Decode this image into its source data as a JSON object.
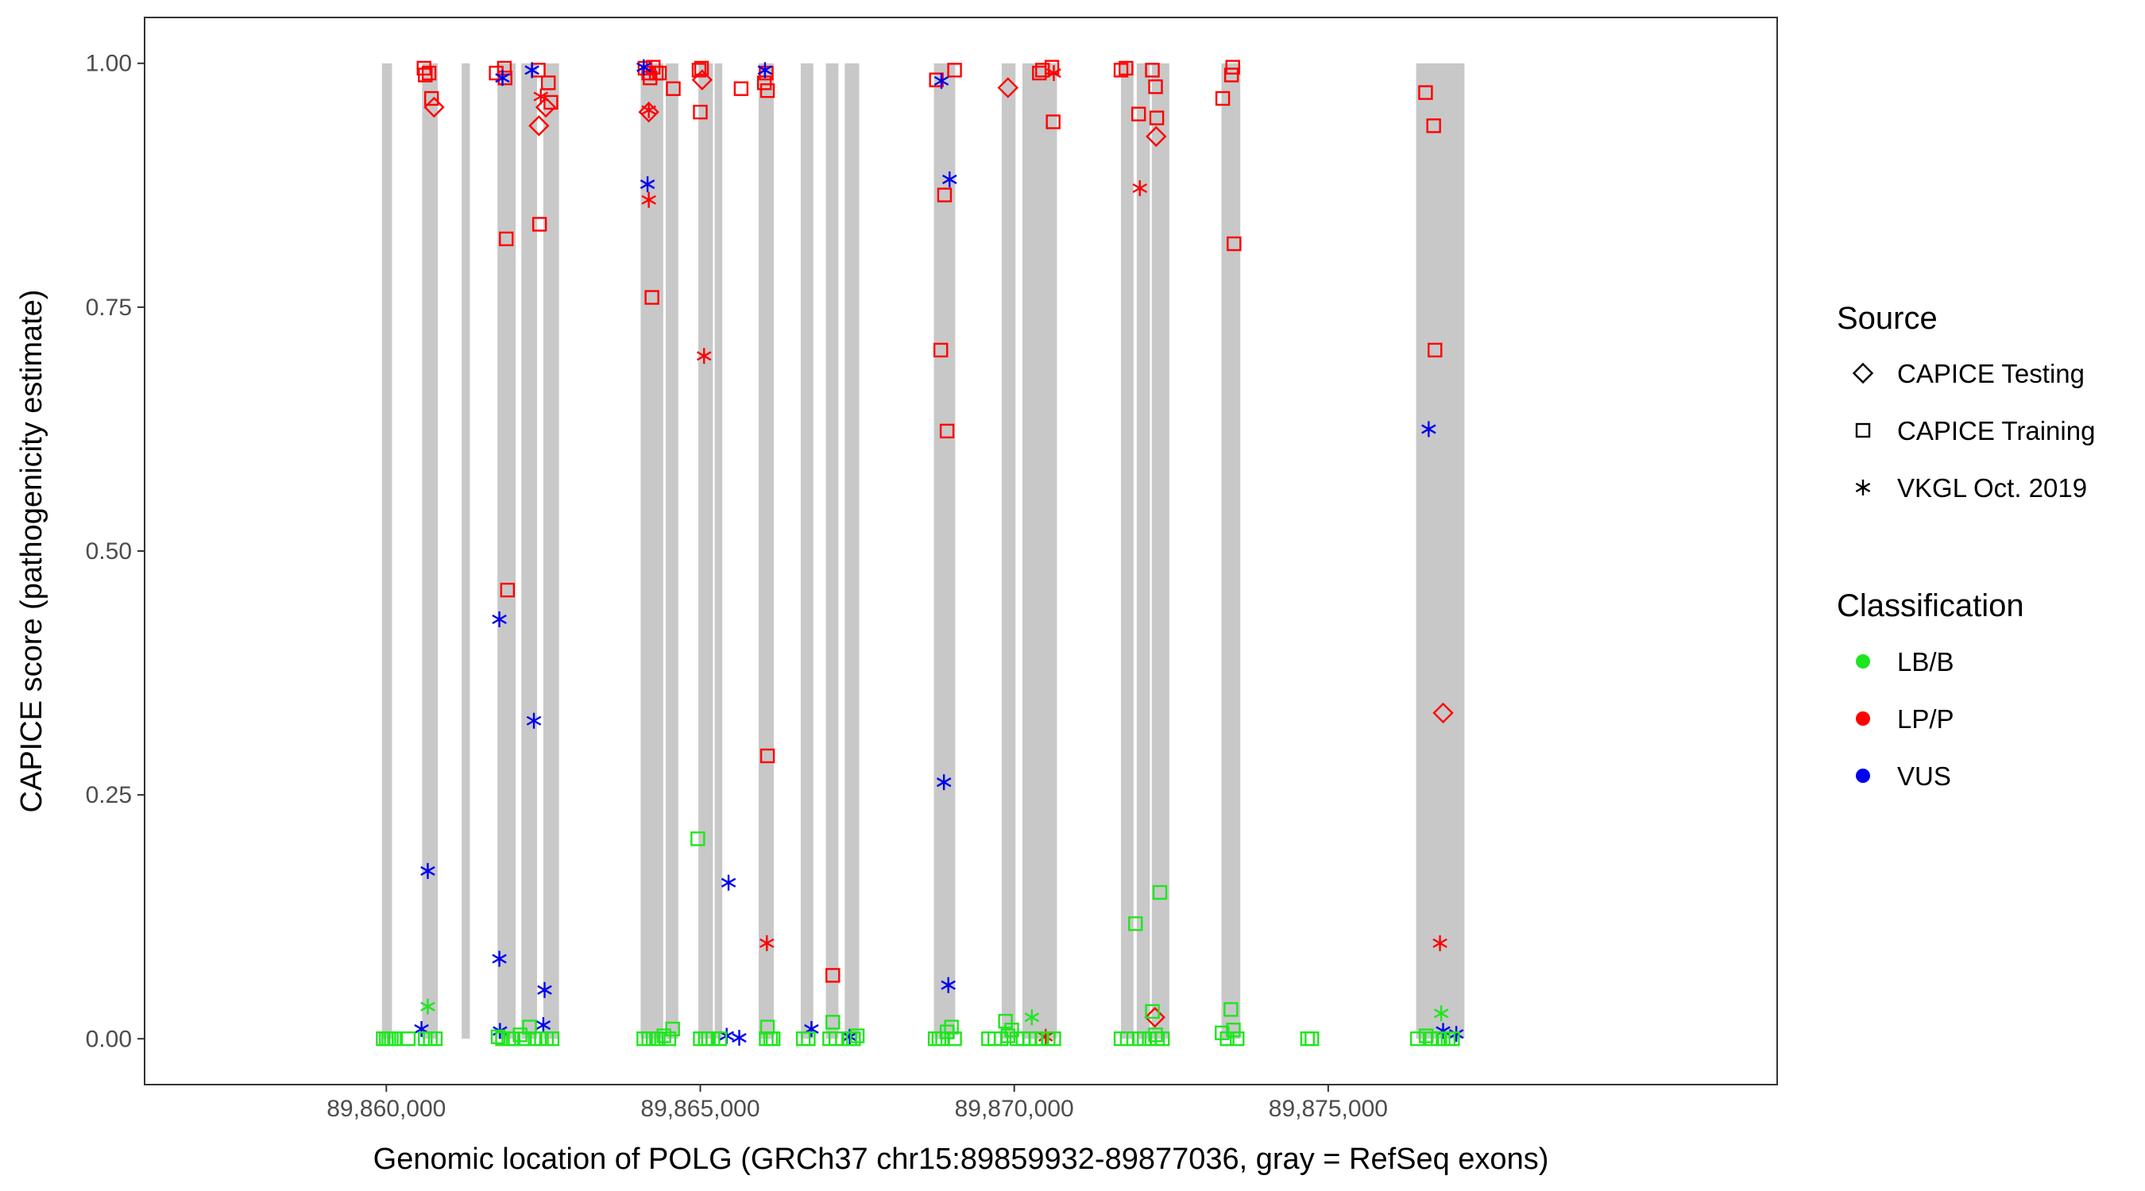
{
  "chart_data": {
    "type": "scatter",
    "xlabel": "Genomic location of POLG (GRCh37 chr15:89859932-89877036, gray = RefSeq exons)",
    "ylabel": "CAPICE score (pathogenicity estimate)",
    "xlim": [
      89856150,
      89882150
    ],
    "ylim": [
      -0.047,
      1.047
    ],
    "x_ticks": [
      89860000,
      89865000,
      89870000,
      89875000
    ],
    "x_tick_labels": [
      "89,860,000",
      "89,865,000",
      "89,870,000",
      "89,875,000"
    ],
    "y_ticks": [
      0.0,
      0.25,
      0.5,
      0.75,
      1.0
    ],
    "y_tick_labels": [
      "0.00",
      "0.25",
      "0.50",
      "0.75",
      "1.00"
    ],
    "grid": false,
    "exon_color": "#c8c8c8",
    "exons": [
      [
        89859930,
        89860090
      ],
      [
        89860570,
        89860820
      ],
      [
        89861200,
        89861330
      ],
      [
        89861770,
        89862060
      ],
      [
        89862150,
        89862400
      ],
      [
        89862500,
        89862750
      ],
      [
        89864050,
        89864410
      ],
      [
        89864450,
        89864650
      ],
      [
        89864970,
        89865200
      ],
      [
        89865230,
        89865350
      ],
      [
        89865930,
        89866170
      ],
      [
        89866600,
        89866800
      ],
      [
        89867000,
        89867200
      ],
      [
        89867300,
        89867530
      ],
      [
        89868720,
        89869060
      ],
      [
        89869800,
        89870020
      ],
      [
        89870130,
        89870680
      ],
      [
        89871700,
        89871900
      ],
      [
        89871950,
        89872160
      ],
      [
        89872190,
        89872470
      ],
      [
        89873300,
        89873600
      ],
      [
        89876400,
        89877170
      ]
    ],
    "legend": {
      "source_title": "Source",
      "source_items": [
        {
          "label": "CAPICE Testing",
          "shape": "diamond"
        },
        {
          "label": "CAPICE Training",
          "shape": "square"
        },
        {
          "label": "VKGL Oct. 2019",
          "shape": "asterisk"
        }
      ],
      "class_title": "Classification",
      "class_items": [
        {
          "label": "LB/B",
          "color": "#1ee61e"
        },
        {
          "label": "LP/P",
          "color": "#ff0000"
        },
        {
          "label": "VUS",
          "color": "#0000ee"
        }
      ]
    },
    "series": [
      {
        "source": "CAPICE Training",
        "classification": "LP/P",
        "points": [
          [
            89860600,
            0.995
          ],
          [
            89860620,
            0.988
          ],
          [
            89860680,
            0.99
          ],
          [
            89860720,
            0.964
          ],
          [
            89861750,
            0.99
          ],
          [
            89861880,
            0.995
          ],
          [
            89861890,
            0.985
          ],
          [
            89861910,
            0.82
          ],
          [
            89861930,
            0.46
          ],
          [
            89862420,
            0.993
          ],
          [
            89862440,
            0.835
          ],
          [
            89862580,
            0.98
          ],
          [
            89862620,
            0.96
          ],
          [
            89864120,
            0.995
          ],
          [
            89864180,
            0.99
          ],
          [
            89864200,
            0.985
          ],
          [
            89864250,
            0.996
          ],
          [
            89864230,
            0.76
          ],
          [
            89864300,
            0.99
          ],
          [
            89864350,
            0.99
          ],
          [
            89864570,
            0.974
          ],
          [
            89864980,
            0.993
          ],
          [
            89865020,
            0.995
          ],
          [
            89865000,
            0.95
          ],
          [
            89865650,
            0.974
          ],
          [
            89866020,
            0.98
          ],
          [
            89866050,
            0.99
          ],
          [
            89866070,
            0.972
          ],
          [
            89866070,
            0.29
          ],
          [
            89867110,
            0.065
          ],
          [
            89868760,
            0.983
          ],
          [
            89868830,
            0.706
          ],
          [
            89868890,
            0.865
          ],
          [
            89868930,
            0.623
          ],
          [
            89869050,
            0.993
          ],
          [
            89870400,
            0.99
          ],
          [
            89870450,
            0.993
          ],
          [
            89870600,
            0.996
          ],
          [
            89870620,
            0.94
          ],
          [
            89871700,
            0.993
          ],
          [
            89871780,
            0.995
          ],
          [
            89871980,
            0.948
          ],
          [
            89872200,
            0.993
          ],
          [
            89872250,
            0.976
          ],
          [
            89872270,
            0.944
          ],
          [
            89873320,
            0.964
          ],
          [
            89873460,
            0.988
          ],
          [
            89873480,
            0.996
          ],
          [
            89873500,
            0.815
          ],
          [
            89876550,
            0.97
          ],
          [
            89876680,
            0.936
          ],
          [
            89876700,
            0.706
          ]
        ]
      },
      {
        "source": "CAPICE Testing",
        "classification": "LP/P",
        "points": [
          [
            89860760,
            0.955
          ],
          [
            89862430,
            0.936
          ],
          [
            89862540,
            0.955
          ],
          [
            89864180,
            0.95
          ],
          [
            89865030,
            0.983
          ],
          [
            89869900,
            0.975
          ],
          [
            89872260,
            0.925
          ],
          [
            89872240,
            0.022
          ],
          [
            89876830,
            0.334
          ]
        ]
      },
      {
        "source": "VKGL Oct. 2019",
        "classification": "LP/P",
        "points": [
          [
            89862460,
            0.966
          ],
          [
            89864180,
            0.952
          ],
          [
            89864180,
            0.86
          ],
          [
            89865060,
            0.7
          ],
          [
            89866060,
            0.098
          ],
          [
            89870500,
            0.002
          ],
          [
            89870630,
            0.99
          ],
          [
            89872000,
            0.872
          ],
          [
            89876780,
            0.098
          ]
        ]
      },
      {
        "source": "VKGL Oct. 2019",
        "classification": "VUS",
        "points": [
          [
            89860660,
            0.172
          ],
          [
            89860560,
            0.01
          ],
          [
            89861800,
            0.43
          ],
          [
            89861800,
            0.082
          ],
          [
            89861810,
            0.008
          ],
          [
            89861850,
            0.985
          ],
          [
            89862320,
            0.993
          ],
          [
            89862350,
            0.326
          ],
          [
            89862520,
            0.05
          ],
          [
            89862500,
            0.014
          ],
          [
            89864100,
            0.996
          ],
          [
            89864160,
            0.876
          ],
          [
            89865450,
            0.16
          ],
          [
            89865420,
            0.003
          ],
          [
            89865620,
            0.001
          ],
          [
            89866030,
            0.993
          ],
          [
            89866770,
            0.01
          ],
          [
            89867380,
            0.002
          ],
          [
            89868840,
            0.982
          ],
          [
            89868880,
            0.263
          ],
          [
            89868950,
            0.055
          ],
          [
            89868970,
            0.881
          ],
          [
            89876600,
            0.625
          ],
          [
            89876830,
            0.008
          ],
          [
            89877040,
            0.005
          ]
        ]
      },
      {
        "source": "VKGL Oct. 2019",
        "classification": "LB/B",
        "points": [
          [
            89860660,
            0.033
          ],
          [
            89876800,
            0.026
          ],
          [
            89870280,
            0.022
          ]
        ]
      },
      {
        "source": "CAPICE Training",
        "classification": "LB/B",
        "points": [
          [
            89859950,
            0.0
          ],
          [
            89860000,
            0.0
          ],
          [
            89860040,
            0.0
          ],
          [
            89860080,
            0.0
          ],
          [
            89860130,
            0.0
          ],
          [
            89860350,
            0.0
          ],
          [
            89860620,
            0.0
          ],
          [
            89860700,
            0.0
          ],
          [
            89860780,
            0.0
          ],
          [
            89861780,
            0.002
          ],
          [
            89861850,
            0.0
          ],
          [
            89861950,
            0.0
          ],
          [
            89862020,
            0.0
          ],
          [
            89862130,
            0.004
          ],
          [
            89862200,
            0.0
          ],
          [
            89862280,
            0.012
          ],
          [
            89862370,
            0.0
          ],
          [
            89862470,
            0.0
          ],
          [
            89862550,
            0.0
          ],
          [
            89862640,
            0.0
          ],
          [
            89864100,
            0.0
          ],
          [
            89864180,
            0.0
          ],
          [
            89864250,
            0.0
          ],
          [
            89864330,
            0.0
          ],
          [
            89864420,
            0.003
          ],
          [
            89864500,
            0.0
          ],
          [
            89864560,
            0.01
          ],
          [
            89864960,
            0.205
          ],
          [
            89865000,
            0.0
          ],
          [
            89865080,
            0.0
          ],
          [
            89865130,
            0.0
          ],
          [
            89865200,
            0.0
          ],
          [
            89865310,
            0.0
          ],
          [
            89866070,
            0.012
          ],
          [
            89866050,
            0.0
          ],
          [
            89866120,
            0.0
          ],
          [
            89866160,
            0.0
          ],
          [
            89866640,
            0.0
          ],
          [
            89866720,
            0.0
          ],
          [
            89867060,
            0.0
          ],
          [
            89867110,
            0.017
          ],
          [
            89867160,
            0.0
          ],
          [
            89867380,
            0.0
          ],
          [
            89867440,
            0.0
          ],
          [
            89867500,
            0.003
          ],
          [
            89868740,
            0.0
          ],
          [
            89868800,
            0.0
          ],
          [
            89868860,
            0.0
          ],
          [
            89868930,
            0.007
          ],
          [
            89869000,
            0.012
          ],
          [
            89869050,
            0.0
          ],
          [
            89869590,
            0.0
          ],
          [
            89869690,
            0.0
          ],
          [
            89869790,
            0.0
          ],
          [
            89869860,
            0.018
          ],
          [
            89869900,
            0.003
          ],
          [
            89869960,
            0.009
          ],
          [
            89870040,
            0.0
          ],
          [
            89870140,
            0.0
          ],
          [
            89870250,
            0.0
          ],
          [
            89870350,
            0.0
          ],
          [
            89870440,
            0.0
          ],
          [
            89870540,
            0.0
          ],
          [
            89870630,
            0.0
          ],
          [
            89871700,
            0.0
          ],
          [
            89871800,
            0.0
          ],
          [
            89871930,
            0.118
          ],
          [
            89871990,
            0.0
          ],
          [
            89872070,
            0.0
          ],
          [
            89872150,
            0.0
          ],
          [
            89872250,
            0.004
          ],
          [
            89872280,
            0.0
          ],
          [
            89872320,
            0.15
          ],
          [
            89872360,
            0.0
          ],
          [
            89872200,
            0.028
          ],
          [
            89873310,
            0.006
          ],
          [
            89873390,
            0.0
          ],
          [
            89873450,
            0.03
          ],
          [
            89873490,
            0.009
          ],
          [
            89873550,
            0.0
          ],
          [
            89874670,
            0.0
          ],
          [
            89874740,
            0.0
          ],
          [
            89876420,
            0.0
          ],
          [
            89876560,
            0.003
          ],
          [
            89876650,
            0.0
          ],
          [
            89876750,
            0.0
          ],
          [
            89876830,
            0.0
          ],
          [
            89876910,
            0.0
          ],
          [
            89876980,
            0.0
          ]
        ]
      }
    ]
  }
}
